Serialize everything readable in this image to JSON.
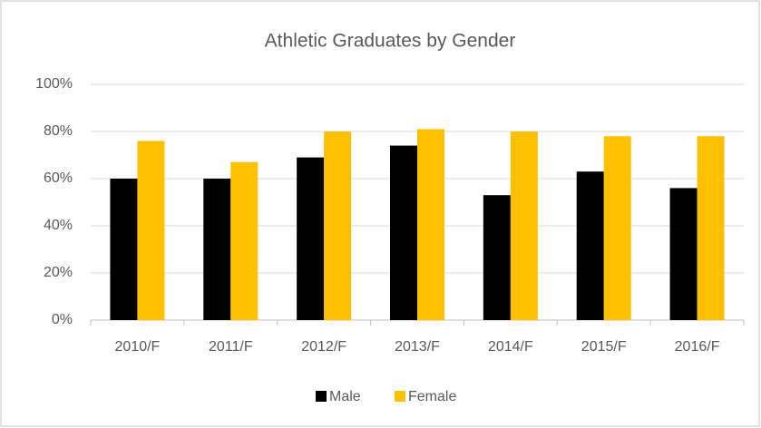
{
  "chart_data": {
    "type": "bar",
    "title": "Athletic Graduates by Gender",
    "categories": [
      "2010/F",
      "2011/F",
      "2012/F",
      "2013/F",
      "2014/F",
      "2015/F",
      "2016/F"
    ],
    "series": [
      {
        "name": "Male",
        "color": "#000000",
        "values": [
          60,
          60,
          69,
          74,
          53,
          63,
          56
        ]
      },
      {
        "name": "Female",
        "color": "#ffc000",
        "values": [
          76,
          67,
          80,
          81,
          80,
          78,
          78
        ]
      }
    ],
    "ylim": [
      0,
      100
    ],
    "yticks": [
      {
        "value": 0,
        "label": "0%"
      },
      {
        "value": 20,
        "label": "20%"
      },
      {
        "value": 40,
        "label": "40%"
      },
      {
        "value": 60,
        "label": "60%"
      },
      {
        "value": 80,
        "label": "80%"
      },
      {
        "value": 100,
        "label": "100%"
      }
    ],
    "grid": true,
    "legend": "bottom"
  }
}
